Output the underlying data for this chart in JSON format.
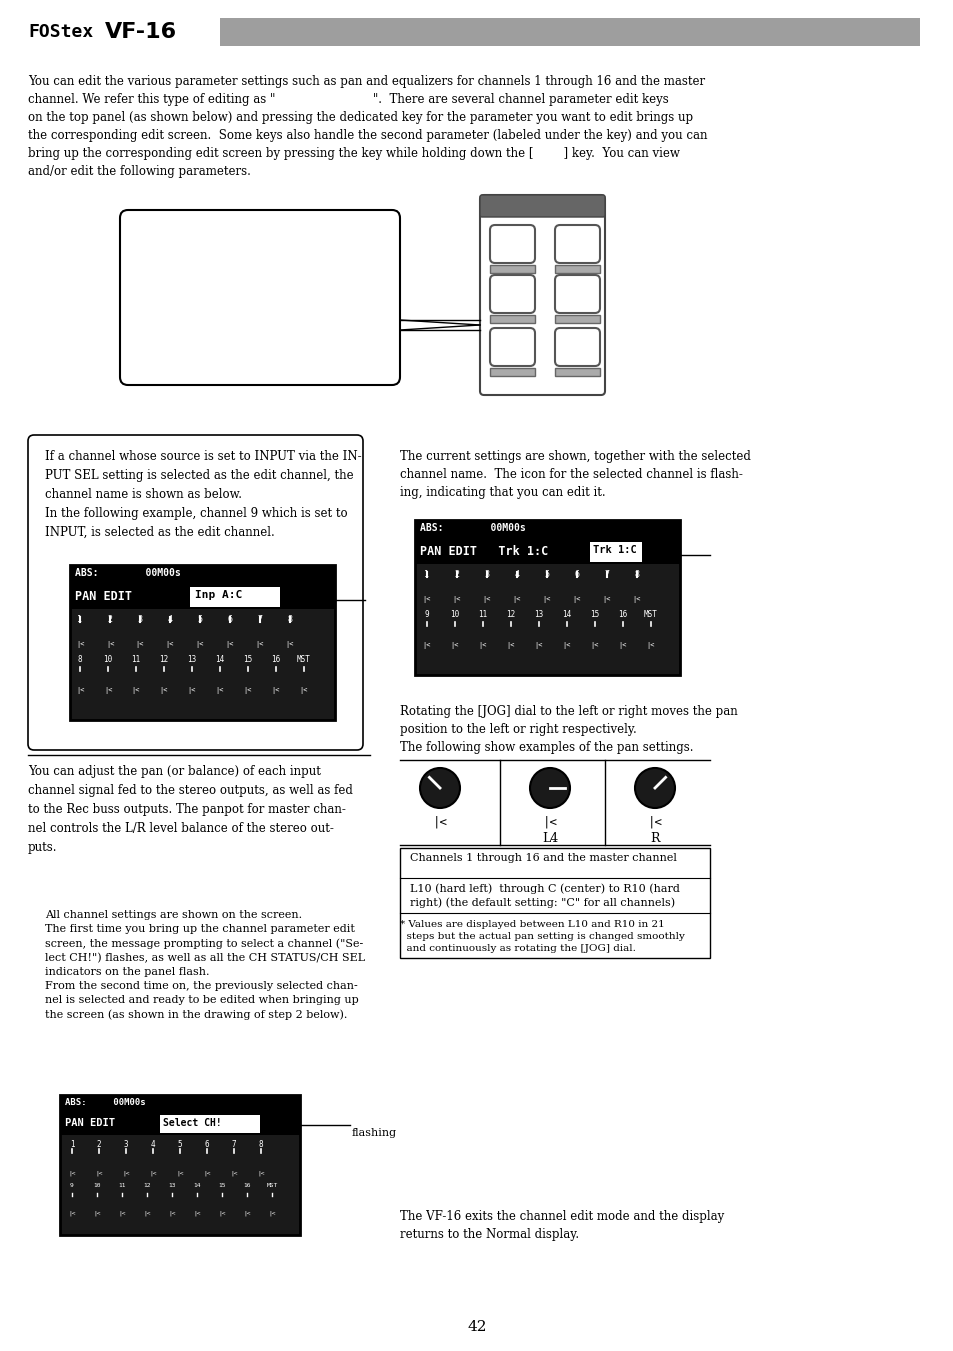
{
  "page_num": "42",
  "header_text": "FOStex VF-16",
  "header_bar_color": "#9e9e9e",
  "background_color": "#ffffff",
  "body_text_1": "You can edit the various parameter settings such as pan and equalizers for channels 1 through 16 and the master\nchannel. We refer this type of editing as \"                          \".  There are several channel parameter edit keys\non the top panel (as shown below) and pressing the dedicated key for the parameter you want to edit brings up\nthe corresponding edit screen.  Some keys also handle the second parameter (labeled under the key) and you can\nbring up the corresponding edit screen by pressing the key while holding down the [        ] key.  You can view\nand/or edit the following parameters.",
  "hint_box_text_1": "If a channel whose source is set to INPUT via the IN-\nPUT SEL setting is selected as the edit channel, the\nchannel name is shown as below.\nIn the following example, channel 9 which is set to\nINPUT, is selected as the edit channel.",
  "right_col_text_1": "The current settings are shown, together with the selected\nchannel name.  The icon for the selected channel is flash-\ning, indicating that you can edit it.",
  "right_col_text_2": "Rotating the [JOG] dial to the left or right moves the pan\nposition to the left or right respectively.\nThe following show examples of the pan settings.",
  "pan_table_row1": "Channels 1 through 16 and the master channel",
  "pan_table_row2": "L10 (hard left)  through C (center) to R10 (hard\nright) (the default setting: \"C\" for all channels)",
  "pan_table_row3": "* Values are displayed between L10 and R10 in 21\n  steps but the actual pan setting is changed smoothly\n  and continuously as rotating the [JOG] dial.",
  "bottom_left_text": "You can adjust the pan (or balance) of each input\nchannel signal fed to the stereo outputs, as well as fed\nto the Rec buss outputs. The panpot for master chan-\nnel controls the L/R level balance of the stereo out-\nputs.",
  "step_text": "All channel settings are shown on the screen.\nThe first time you bring up the channel parameter edit\nscreen, the message prompting to select a channel (\"Se-\nlect CH!\") flashes, as well as all the CH STATUS/CH SEL\nindicators on the panel flash.\nFrom the second time on, the previously selected chan-\nnel is selected and ready to be edited when bringing up\nthe screen (as shown in the drawing of step 2 below).",
  "flashing_label": "flashing",
  "bottom_exit_text": "The VF-16 exits the channel edit mode and the display\nreturns to the Normal display."
}
